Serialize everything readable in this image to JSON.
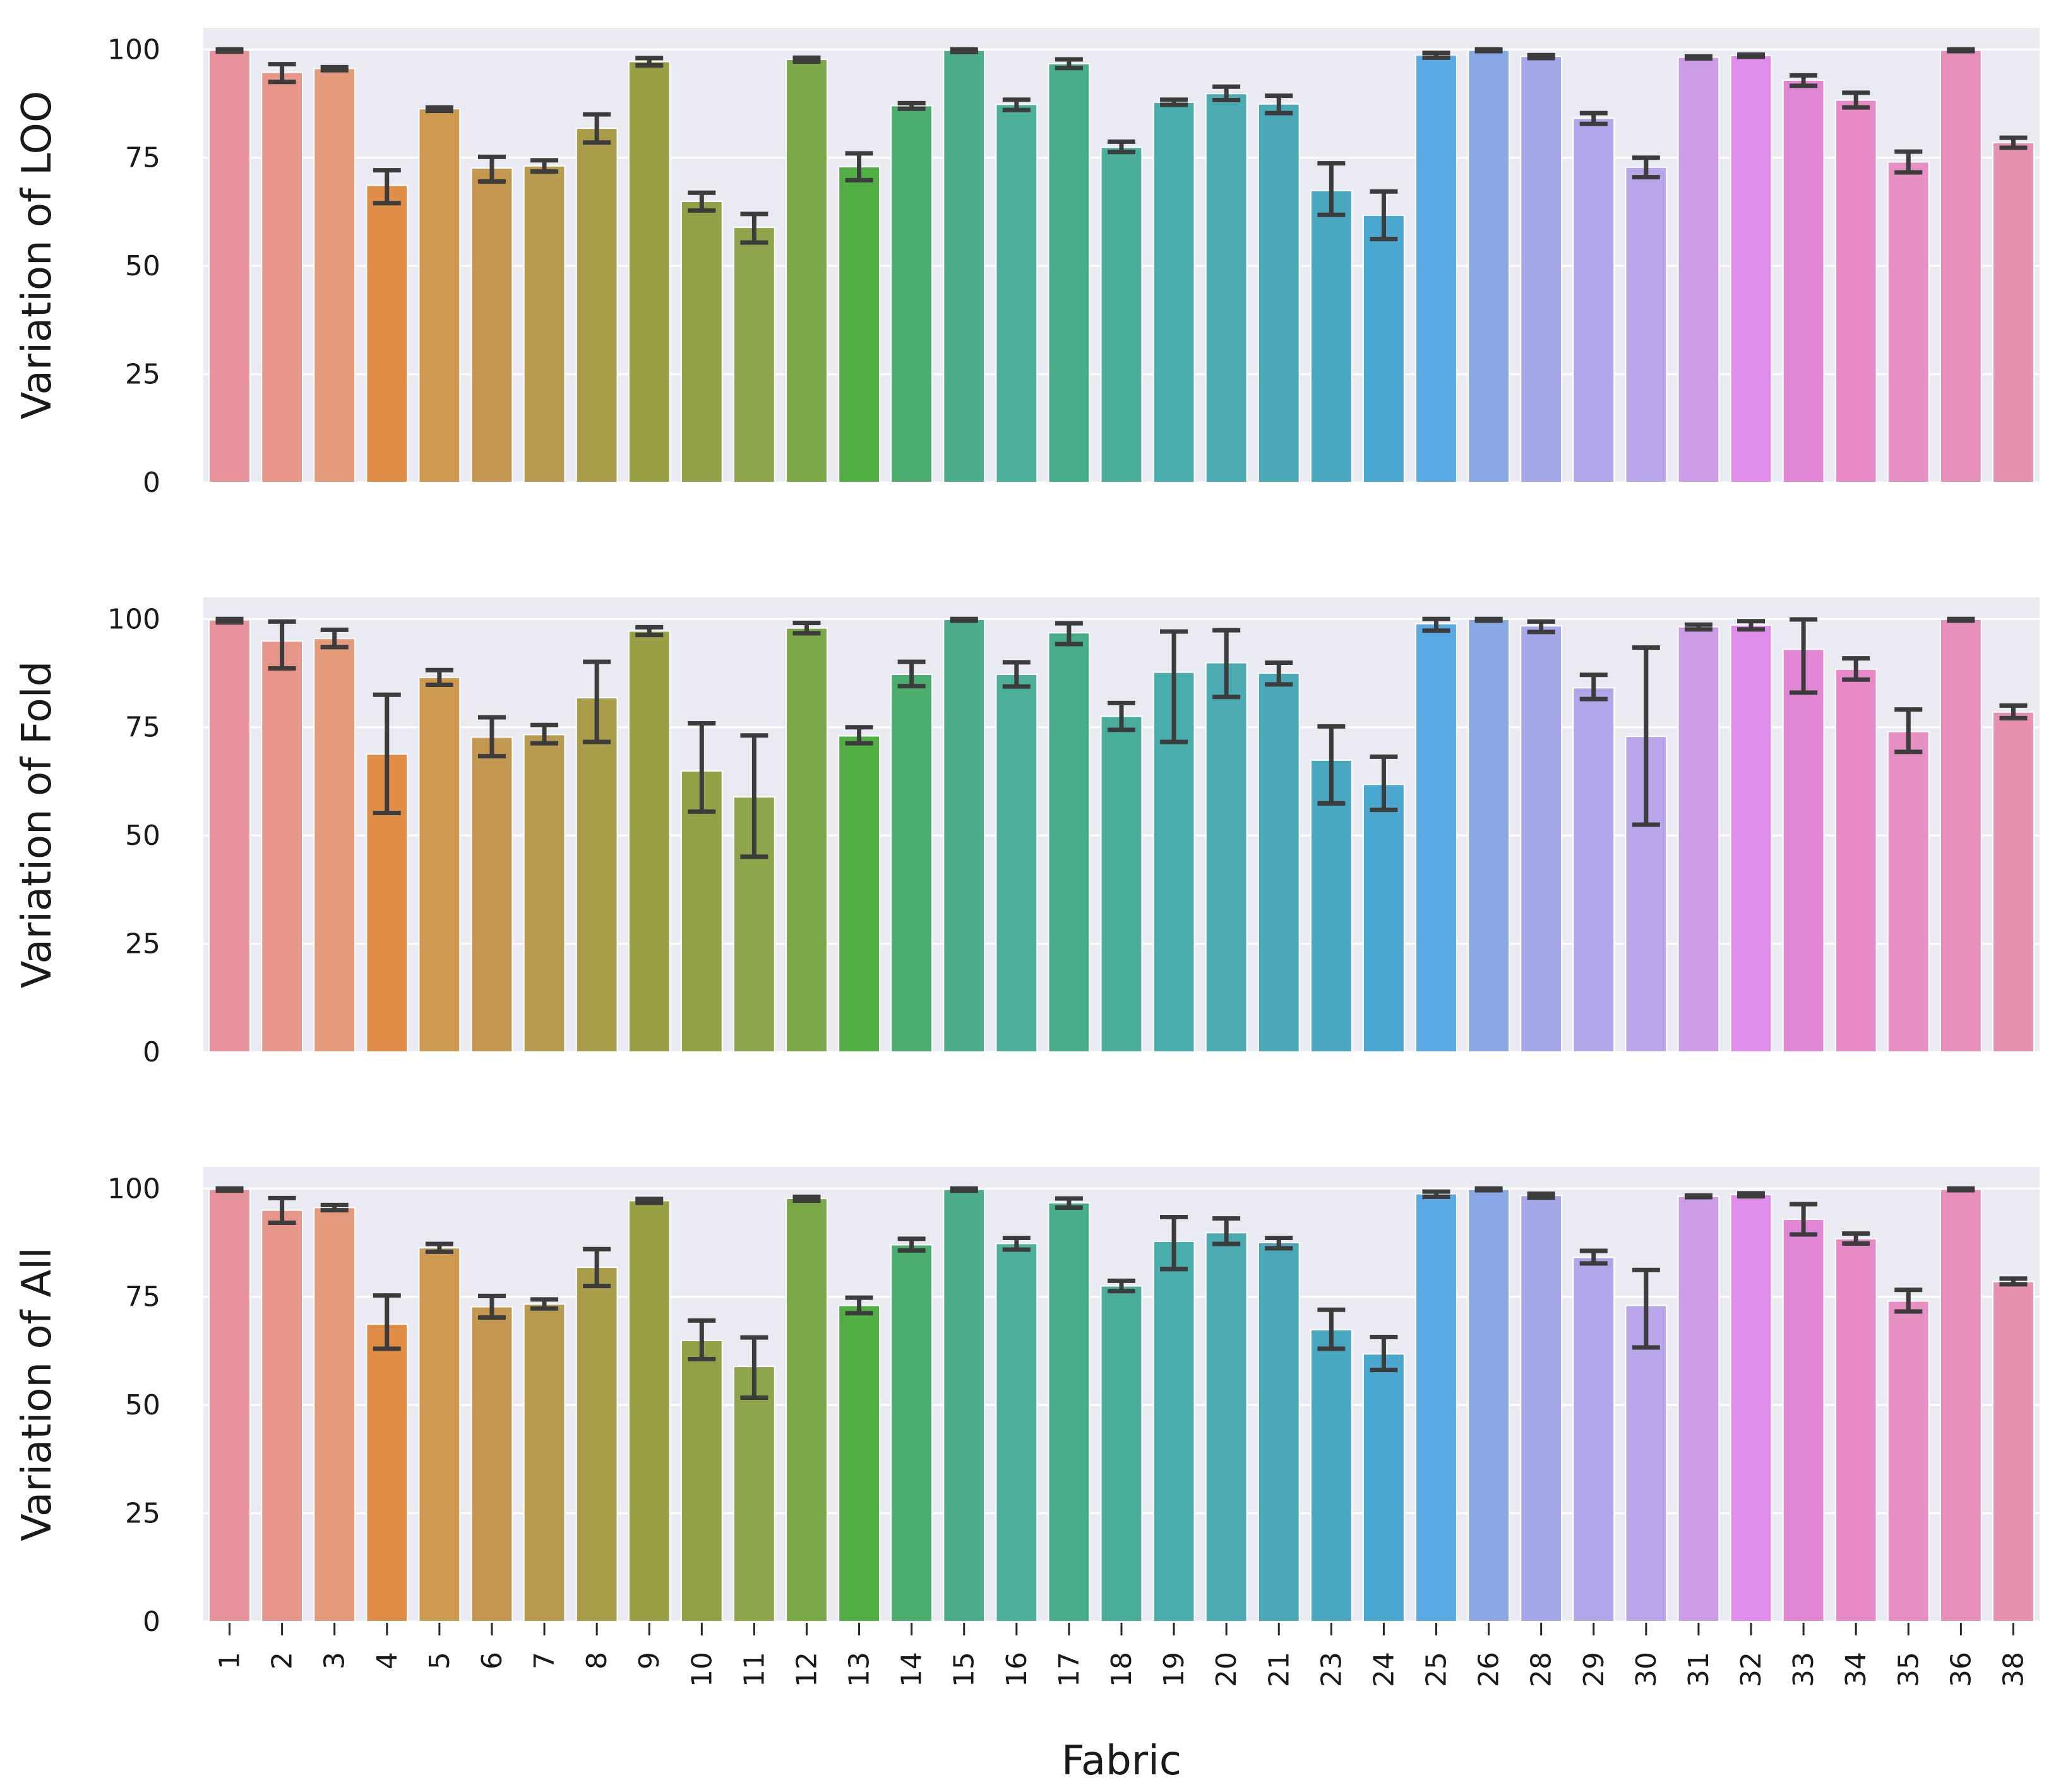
{
  "chart_data": {
    "type": "bar",
    "xlabel": "Fabric",
    "categories": [
      "1",
      "2",
      "3",
      "4",
      "5",
      "6",
      "7",
      "8",
      "9",
      "10",
      "11",
      "12",
      "13",
      "14",
      "15",
      "16",
      "17",
      "18",
      "19",
      "20",
      "21",
      "23",
      "24",
      "25",
      "26",
      "28",
      "29",
      "30",
      "31",
      "32",
      "33",
      "34",
      "35",
      "36",
      "38"
    ],
    "colors": [
      "#e8939c",
      "#e8958a",
      "#e59a7c",
      "#e08e47",
      "#cd9a50",
      "#c49850",
      "#b89a50",
      "#aa9d4a",
      "#999f44",
      "#93a146",
      "#8ea54c",
      "#7aa847",
      "#52af44",
      "#4aad6e",
      "#4bad89",
      "#4baf9a",
      "#48ae8a",
      "#49ae9c",
      "#4aaead",
      "#4caab3",
      "#4ba8b6",
      "#49a7bf",
      "#4aa8d0",
      "#59a9e3",
      "#8aa8e6",
      "#a6a7ea",
      "#b0a7eb",
      "#b8a5ea",
      "#cc9ce6",
      "#e18deb",
      "#e287d6",
      "#e889c8",
      "#e78fc2",
      "#e98fbb",
      "#e890b0"
    ],
    "ylim": [
      0,
      105
    ],
    "yticks": [
      0,
      25,
      50,
      75,
      100
    ],
    "panels": [
      {
        "ylabel": "Variation of LOO",
        "values": [
          99.8,
          94.7,
          95.6,
          68.6,
          86.3,
          72.6,
          73.1,
          81.8,
          97.2,
          64.9,
          58.9,
          97.7,
          72.9,
          87.0,
          99.8,
          87.3,
          96.7,
          77.4,
          87.8,
          89.8,
          87.4,
          67.4,
          61.7,
          98.7,
          99.8,
          98.4,
          84.1,
          72.8,
          98.2,
          98.6,
          92.9,
          88.3,
          74.0,
          99.8,
          78.5
        ],
        "err_low": [
          99.5,
          92.5,
          95.2,
          64.5,
          85.8,
          69.5,
          71.8,
          78.5,
          96.3,
          62.8,
          55.4,
          97.2,
          69.8,
          86.3,
          99.4,
          86.0,
          95.7,
          76.3,
          87.2,
          88.3,
          85.3,
          61.8,
          56.2,
          98.1,
          99.6,
          98.0,
          82.8,
          70.5,
          97.9,
          98.3,
          91.6,
          86.6,
          71.6,
          99.6,
          77.3
        ],
        "err_high": [
          100,
          96.6,
          95.9,
          72.1,
          86.6,
          75.2,
          74.4,
          85.0,
          98.0,
          66.9,
          62.0,
          98.1,
          76.0,
          87.6,
          100,
          88.4,
          97.7,
          78.7,
          88.4,
          91.4,
          89.3,
          73.7,
          67.2,
          99.2,
          100,
          98.7,
          85.3,
          75.0,
          98.4,
          98.8,
          94.0,
          90.0,
          76.4,
          100,
          79.6
        ]
      },
      {
        "ylabel": "Variation of Fold",
        "values": [
          99.8,
          94.9,
          95.5,
          68.8,
          86.5,
          72.7,
          73.3,
          81.8,
          97.2,
          64.9,
          58.9,
          97.9,
          73.0,
          87.2,
          99.9,
          87.2,
          96.8,
          77.5,
          87.7,
          89.9,
          87.5,
          67.4,
          61.8,
          98.9,
          99.9,
          98.4,
          84.1,
          72.9,
          98.2,
          98.6,
          93.0,
          88.4,
          74.0,
          99.9,
          78.5
        ],
        "err_low": [
          99.2,
          88.6,
          93.5,
          55.2,
          84.8,
          68.3,
          71.3,
          71.6,
          96.3,
          55.5,
          45.1,
          96.7,
          71.3,
          84.5,
          99.6,
          84.4,
          94.2,
          74.4,
          71.6,
          82.0,
          84.9,
          57.4,
          55.9,
          97.3,
          99.6,
          97.0,
          81.5,
          52.5,
          97.6,
          97.6,
          83.0,
          86.0,
          69.3,
          99.6,
          77.1
        ],
        "err_high": [
          100,
          99.4,
          97.5,
          82.5,
          88.2,
          77.3,
          75.5,
          90.1,
          98.1,
          75.9,
          73.1,
          99.1,
          75.0,
          90.1,
          100,
          90.0,
          99.0,
          80.6,
          97.1,
          97.4,
          89.9,
          75.2,
          68.2,
          100,
          100,
          99.4,
          87.1,
          93.4,
          98.7,
          99.5,
          99.9,
          90.9,
          79.1,
          100,
          80.0
        ]
      },
      {
        "ylabel": "Variation of All",
        "values": [
          99.8,
          95.0,
          95.6,
          68.7,
          86.3,
          72.7,
          73.3,
          81.8,
          97.2,
          64.9,
          58.9,
          97.7,
          73.0,
          87.0,
          99.8,
          87.3,
          96.7,
          77.5,
          87.8,
          89.8,
          87.5,
          67.4,
          61.8,
          98.8,
          99.8,
          98.4,
          84.1,
          73.0,
          98.2,
          98.6,
          92.9,
          88.4,
          74.0,
          99.8,
          78.5
        ],
        "err_low": [
          99.5,
          92.1,
          95.0,
          63.0,
          85.4,
          70.2,
          72.3,
          77.5,
          96.7,
          60.6,
          51.7,
          97.2,
          71.2,
          85.7,
          99.5,
          85.9,
          95.6,
          76.3,
          81.4,
          87.2,
          86.2,
          63.0,
          58.1,
          98.1,
          99.6,
          97.9,
          82.7,
          63.3,
          98.0,
          98.2,
          89.4,
          87.3,
          71.6,
          99.6,
          77.9
        ],
        "err_high": [
          100,
          97.8,
          96.2,
          75.3,
          87.2,
          75.2,
          74.4,
          86.0,
          97.6,
          69.5,
          65.6,
          98.1,
          74.8,
          88.4,
          100,
          88.6,
          97.7,
          78.7,
          93.4,
          93.1,
          88.6,
          72.0,
          65.7,
          99.3,
          100,
          98.8,
          85.6,
          81.2,
          98.4,
          98.9,
          96.4,
          89.6,
          76.6,
          100,
          79.2
        ]
      }
    ]
  }
}
